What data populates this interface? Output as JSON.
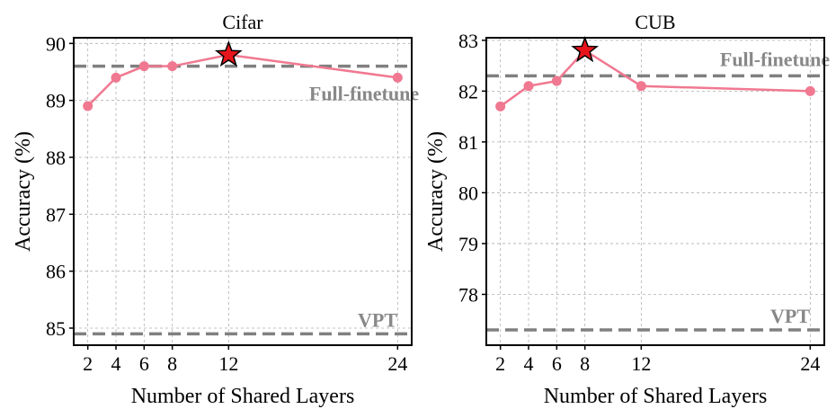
{
  "chart_data": [
    {
      "type": "line",
      "title": "Cifar",
      "xlabel": "Number of Shared Layers",
      "ylabel": "Accuracy (%)",
      "x": [
        2,
        4,
        6,
        8,
        12,
        24
      ],
      "xticks": [
        "2",
        "4",
        "6",
        "8",
        "12",
        "24"
      ],
      "xlim": [
        1,
        25
      ],
      "ylim": [
        84.7,
        90.1
      ],
      "yticks": [
        "85",
        "86",
        "87",
        "88",
        "89",
        "90"
      ],
      "grid": true,
      "series": [
        {
          "values": [
            88.9,
            89.4,
            89.6,
            89.6,
            89.8,
            89.4
          ],
          "color": "#f07890"
        }
      ],
      "best_point": {
        "x": 12,
        "y": 89.8,
        "color": "#e8161c"
      },
      "reference_lines": [
        {
          "label": "Full-finetune",
          "y": 89.6
        },
        {
          "label": "VPT",
          "y": 84.9
        }
      ]
    },
    {
      "type": "line",
      "title": "CUB",
      "xlabel": "Number of Shared Layers",
      "ylabel": "Accuracy (%)",
      "x": [
        2,
        4,
        6,
        8,
        12,
        24
      ],
      "xticks": [
        "2",
        "4",
        "6",
        "8",
        "12",
        "24"
      ],
      "xlim": [
        1,
        25
      ],
      "ylim": [
        77.0,
        83.05
      ],
      "yticks": [
        "78",
        "79",
        "80",
        "81",
        "82",
        "83"
      ],
      "grid": true,
      "series": [
        {
          "values": [
            81.7,
            82.1,
            82.2,
            82.8,
            82.1,
            82.0
          ],
          "color": "#f07890"
        }
      ],
      "best_point": {
        "x": 8,
        "y": 82.8,
        "color": "#e8161c"
      },
      "reference_lines": [
        {
          "label": "Full-finetune",
          "y": 82.3
        },
        {
          "label": "VPT",
          "y": 77.3
        }
      ]
    }
  ]
}
